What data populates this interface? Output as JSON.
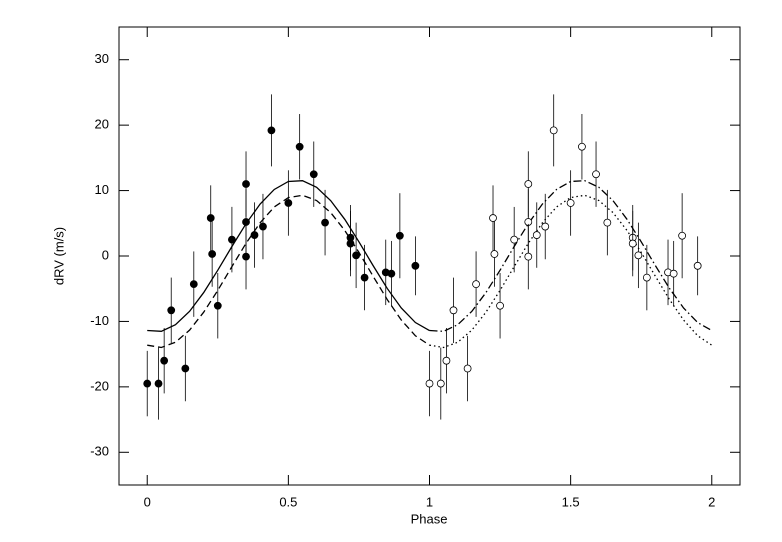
{
  "chart_data": {
    "type": "scatter",
    "xlabel": "Phase",
    "ylabel": "dRV (m/s)",
    "xlim": [
      -0.1,
      2.1
    ],
    "ylim": [
      -35,
      35
    ],
    "xticks": [
      0,
      0.5,
      1,
      1.5,
      2
    ],
    "yticks": [
      -30,
      -20,
      -10,
      0,
      10,
      20,
      30
    ],
    "series": [
      {
        "marker": "filled",
        "color": "#000000",
        "x": [
          0,
          0.04,
          0.06,
          0.085,
          0.135,
          0.165,
          0.225,
          0.23,
          0.25,
          0.3,
          0.35,
          0.35,
          0.35,
          0.38,
          0.41,
          0.44,
          0.5,
          0.54,
          0.59,
          0.63,
          0.72,
          0.72,
          0.74,
          0.77,
          0.845,
          0.865,
          0.895,
          0.95
        ],
        "values": [
          -19.5,
          -19.5,
          -16,
          -8.3,
          -17.2,
          -4.3,
          5.8,
          0.3,
          -7.6,
          2.5,
          11,
          5.2,
          -0.1,
          3.2,
          4.5,
          19.2,
          8.1,
          16.7,
          12.5,
          5.1,
          2.8,
          1.9,
          0.1,
          -3.3,
          -2.5,
          -2.7,
          3.1,
          -1.5
        ],
        "errors": [
          5,
          5.5,
          5,
          5,
          5,
          5,
          5,
          5,
          5,
          5,
          5,
          5,
          5,
          5,
          5,
          5.5,
          5,
          5,
          5,
          5,
          5,
          5,
          5,
          5,
          5,
          5,
          6.5,
          4.5
        ]
      },
      {
        "marker": "open",
        "color": "#000000",
        "x": [
          1,
          1.04,
          1.06,
          1.085,
          1.135,
          1.165,
          1.225,
          1.23,
          1.25,
          1.3,
          1.35,
          1.35,
          1.35,
          1.38,
          1.41,
          1.44,
          1.5,
          1.54,
          1.59,
          1.63,
          1.72,
          1.72,
          1.74,
          1.77,
          1.845,
          1.865,
          1.895,
          1.95
        ],
        "values": [
          -19.5,
          -19.5,
          -16,
          -8.3,
          -17.2,
          -4.3,
          5.8,
          0.3,
          -7.6,
          2.5,
          11,
          5.2,
          -0.1,
          3.2,
          4.5,
          19.2,
          8.1,
          16.7,
          12.5,
          5.1,
          2.8,
          1.9,
          0.1,
          -3.3,
          -2.5,
          -2.7,
          3.1,
          -1.5
        ],
        "errors": [
          5,
          5.5,
          5,
          5,
          5,
          5,
          5,
          5,
          5,
          5,
          5,
          5,
          5,
          5,
          5,
          5.5,
          5,
          5,
          5,
          5,
          5,
          5,
          5,
          5,
          5,
          5,
          6.5,
          4.5
        ]
      }
    ],
    "curves": [
      {
        "dash": "solid",
        "color": "#000000",
        "x": [
          0,
          0.05,
          0.1,
          0.15,
          0.2,
          0.25,
          0.3,
          0.35,
          0.4,
          0.45,
          0.5,
          0.55,
          0.6,
          0.65,
          0.7,
          0.75,
          0.8,
          0.85,
          0.9,
          0.95,
          1
        ],
        "values": [
          -11.39,
          -11.51,
          -10.5,
          -8.46,
          -5.59,
          -2.17,
          1.45,
          4.94,
          7.94,
          10.17,
          11.39,
          11.51,
          10.5,
          8.46,
          5.59,
          2.17,
          -1.45,
          -4.94,
          -7.94,
          -10.17,
          -11.39
        ]
      },
      {
        "dash": "dashed",
        "color": "#000000",
        "x": [
          0,
          0.05,
          0.1,
          0.15,
          0.2,
          0.25,
          0.3,
          0.35,
          0.4,
          0.45,
          0.5,
          0.55,
          0.6,
          0.65,
          0.7,
          0.75,
          0.8,
          0.85,
          0.9,
          0.95,
          1
        ],
        "values": [
          -13.63,
          -13.98,
          -13.18,
          -11.33,
          -8.59,
          -5.25,
          -1.62,
          1.94,
          5.08,
          7.49,
          8.93,
          9.28,
          8.48,
          6.63,
          3.89,
          0.55,
          -3.08,
          -6.64,
          -9.78,
          -12.19,
          -13.63
        ]
      },
      {
        "dash": "dotdash",
        "color": "#000000",
        "x": [
          1,
          1.05,
          1.1,
          1.15,
          1.2,
          1.25,
          1.3,
          1.35,
          1.4,
          1.45,
          1.5,
          1.55,
          1.6,
          1.65,
          1.7,
          1.75,
          1.8,
          1.85,
          1.9,
          1.95,
          2
        ],
        "values": [
          -11.39,
          -11.51,
          -10.5,
          -8.46,
          -5.59,
          -2.17,
          1.45,
          4.94,
          7.94,
          10.17,
          11.39,
          11.51,
          10.5,
          8.46,
          5.59,
          2.17,
          -1.45,
          -4.94,
          -7.94,
          -10.17,
          -11.39
        ]
      },
      {
        "dash": "dotted",
        "color": "#000000",
        "x": [
          1,
          1.05,
          1.1,
          1.15,
          1.2,
          1.25,
          1.3,
          1.35,
          1.4,
          1.45,
          1.5,
          1.55,
          1.6,
          1.65,
          1.7,
          1.75,
          1.8,
          1.85,
          1.9,
          1.95,
          2
        ],
        "values": [
          -13.63,
          -13.98,
          -13.18,
          -11.33,
          -8.59,
          -5.25,
          -1.62,
          1.94,
          5.08,
          7.49,
          8.93,
          9.28,
          8.48,
          6.63,
          3.89,
          0.55,
          -3.08,
          -6.64,
          -9.78,
          -12.19,
          -13.63
        ]
      }
    ]
  }
}
